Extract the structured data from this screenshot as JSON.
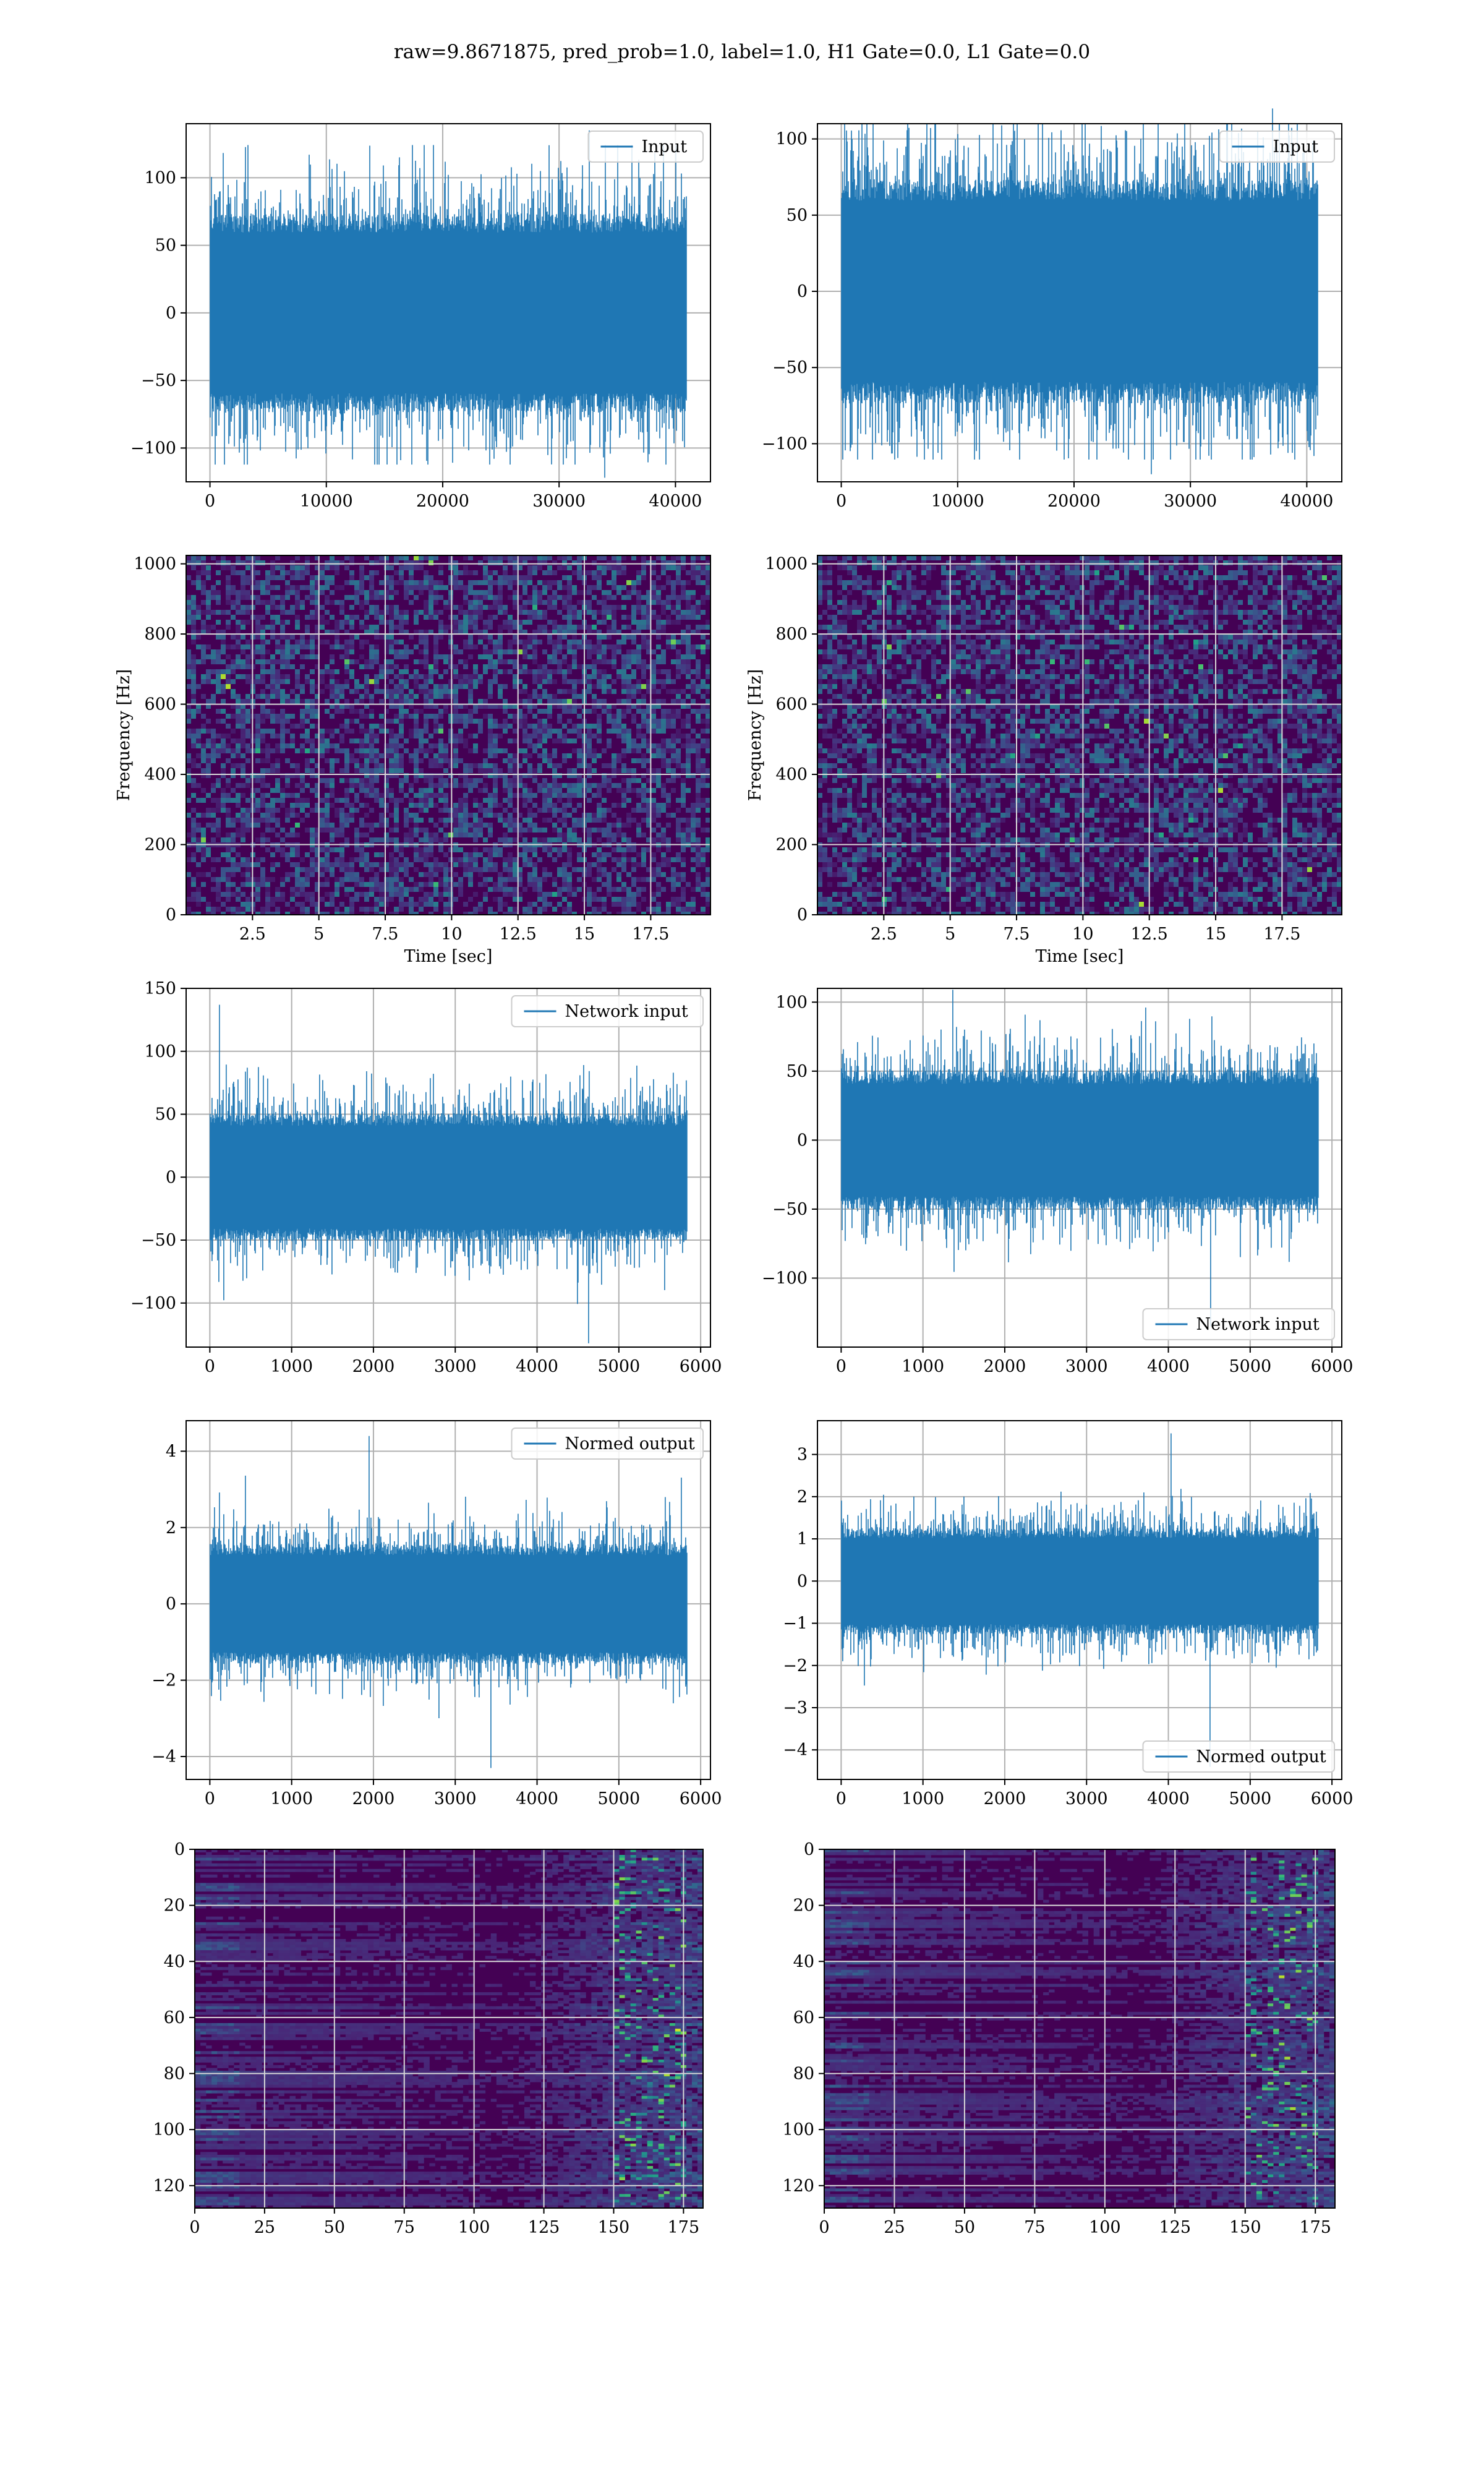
{
  "figure": {
    "suptitle": "raw=9.8671875, pred_prob=1.0, label=1.0, H1 Gate=0.0, L1 Gate=0.0"
  },
  "colors": {
    "series": "#1f77b4",
    "viridis_dark": "#440154",
    "viridis_blue": "#3b528b",
    "viridis_teal": "#21918c",
    "viridis_green": "#5ec962",
    "viridis_yellow": "#fde725"
  },
  "chart_data": [
    {
      "id": "input-h1",
      "type": "line",
      "title": "",
      "xlabel": "",
      "ylabel": "",
      "legend": "Input",
      "legend_loc": "upper right",
      "grid": true,
      "xlim": [
        -2048,
        43008
      ],
      "ylim": [
        -125,
        140
      ],
      "xticks": [
        0,
        10000,
        20000,
        30000,
        40000
      ],
      "yticks": [
        -100,
        -50,
        0,
        50,
        100
      ],
      "signal": {
        "n": 40960,
        "x_start": 0,
        "x_end": 40960,
        "core": 70,
        "peak_max": 135,
        "peak_min": -122
      }
    },
    {
      "id": "input-l1",
      "type": "line",
      "title": "",
      "xlabel": "",
      "ylabel": "",
      "legend": "Input",
      "legend_loc": "upper right",
      "grid": true,
      "xlim": [
        -2048,
        43008
      ],
      "ylim": [
        -125,
        110
      ],
      "xticks": [
        0,
        10000,
        20000,
        30000,
        40000
      ],
      "yticks": [
        -100,
        -50,
        0,
        50,
        100
      ],
      "signal": {
        "n": 40960,
        "x_start": 0,
        "x_end": 40960,
        "core": 70,
        "peak_max": 120,
        "peak_min": -120
      }
    },
    {
      "id": "spectrogram-h1",
      "type": "heatmap",
      "title": "",
      "xlabel": "Time [sec]",
      "ylabel": "Frequency [Hz]",
      "grid": true,
      "colormap": "viridis",
      "xlim": [
        0,
        19.75
      ],
      "ylim": [
        0,
        1024
      ],
      "xticks": [
        2.5,
        5.0,
        7.5,
        10.0,
        12.5,
        15.0,
        17.5
      ],
      "yticks": [
        0,
        200,
        400,
        600,
        800,
        1000
      ]
    },
    {
      "id": "spectrogram-l1",
      "type": "heatmap",
      "title": "",
      "xlabel": "Time [sec]",
      "ylabel": "Frequency [Hz]",
      "grid": true,
      "colormap": "viridis",
      "xlim": [
        0,
        19.75
      ],
      "ylim": [
        0,
        1024
      ],
      "xticks": [
        2.5,
        5.0,
        7.5,
        10.0,
        12.5,
        15.0,
        17.5
      ],
      "yticks": [
        0,
        200,
        400,
        600,
        800,
        1000
      ]
    },
    {
      "id": "network-input-h1",
      "type": "line",
      "title": "",
      "xlabel": "",
      "ylabel": "",
      "legend": "Network input",
      "legend_loc": "upper right",
      "grid": true,
      "xlim": [
        -290,
        6120
      ],
      "ylim": [
        -135,
        150
      ],
      "xticks": [
        0,
        1000,
        2000,
        3000,
        4000,
        5000,
        6000
      ],
      "yticks": [
        -100,
        -50,
        0,
        50,
        100,
        150
      ],
      "signal": {
        "n": 5832,
        "x_start": 0,
        "x_end": 5832,
        "core": 48,
        "peak_max": 137,
        "peak_min": -132
      }
    },
    {
      "id": "network-input-l1",
      "type": "line",
      "title": "",
      "xlabel": "",
      "ylabel": "",
      "legend": "Network input",
      "legend_loc": "lower right",
      "grid": true,
      "xlim": [
        -290,
        6120
      ],
      "ylim": [
        -150,
        110
      ],
      "xticks": [
        0,
        1000,
        2000,
        3000,
        4000,
        5000,
        6000
      ],
      "yticks": [
        -100,
        -50,
        0,
        50,
        100
      ],
      "signal": {
        "n": 5832,
        "x_start": 0,
        "x_end": 5832,
        "core": 48,
        "peak_max": 109,
        "peak_min": -135
      }
    },
    {
      "id": "normed-output-h1",
      "type": "line",
      "title": "",
      "xlabel": "",
      "ylabel": "",
      "legend": "Normed output",
      "legend_loc": "upper right",
      "grid": true,
      "xlim": [
        -290,
        6120
      ],
      "ylim": [
        -4.6,
        4.8
      ],
      "xticks": [
        0,
        1000,
        2000,
        3000,
        4000,
        5000,
        6000
      ],
      "yticks": [
        -4,
        -2,
        0,
        2,
        4
      ],
      "signal": {
        "n": 5832,
        "x_start": 0,
        "x_end": 5832,
        "core": 1.5,
        "peak_max": 4.4,
        "peak_min": -4.3
      }
    },
    {
      "id": "normed-output-l1",
      "type": "line",
      "title": "",
      "xlabel": "",
      "ylabel": "",
      "legend": "Normed output",
      "legend_loc": "lower right",
      "grid": true,
      "xlim": [
        -290,
        6120
      ],
      "ylim": [
        -4.7,
        3.8
      ],
      "xticks": [
        0,
        1000,
        2000,
        3000,
        4000,
        5000,
        6000
      ],
      "yticks": [
        -4,
        -3,
        -2,
        -1,
        0,
        1,
        2,
        3
      ],
      "signal": {
        "n": 5832,
        "x_start": 0,
        "x_end": 5832,
        "core": 1.2,
        "peak_max": 3.5,
        "peak_min": -4.4
      }
    },
    {
      "id": "feature-map-h1",
      "type": "heatmap",
      "title": "",
      "xlabel": "",
      "ylabel": "",
      "grid": true,
      "colormap": "viridis",
      "xlim": [
        0,
        182
      ],
      "ylim": [
        128,
        0
      ],
      "xticks": [
        0,
        25,
        50,
        75,
        100,
        125,
        150,
        175
      ],
      "yticks": [
        0,
        20,
        40,
        60,
        80,
        100,
        120
      ]
    },
    {
      "id": "feature-map-l1",
      "type": "heatmap",
      "title": "",
      "xlabel": "",
      "ylabel": "",
      "grid": true,
      "colormap": "viridis",
      "xlim": [
        0,
        182
      ],
      "ylim": [
        128,
        0
      ],
      "xticks": [
        0,
        25,
        50,
        75,
        100,
        125,
        150,
        175
      ],
      "yticks": [
        0,
        20,
        40,
        60,
        80,
        100,
        120
      ]
    }
  ]
}
